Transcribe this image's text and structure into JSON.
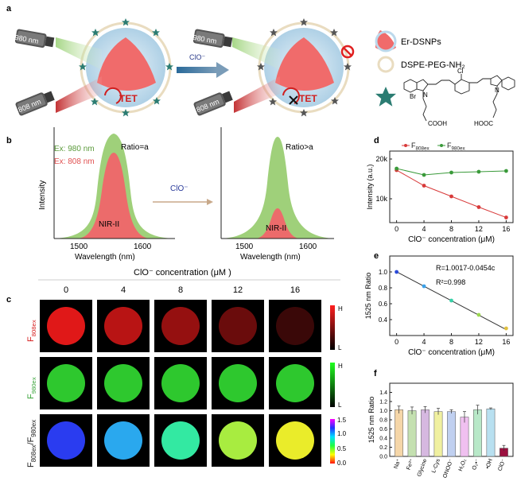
{
  "panel_labels": {
    "a": "a",
    "b": "b",
    "c": "c",
    "d": "d",
    "e": "e",
    "f": "f"
  },
  "panel_a": {
    "laser1": "980 nm",
    "laser2": "808 nm",
    "tet": "TET",
    "clo_arrow": "ClO⁻",
    "legend_np": "Er-DSNPs",
    "legend_lipid": "DSPE-PEG-NH₂",
    "dye_labels": {
      "cl": "Cl",
      "br": "Br",
      "n1": "N",
      "n2": "N",
      "cooh": "COOH",
      "hooc": "HOOC"
    },
    "colors": {
      "np": "#f06b6b",
      "shell": "#bcd9ec",
      "star": "#2b7c72",
      "lipid": "#e9dcc0"
    }
  },
  "panel_b": {
    "ex980": "Ex: 980 nm",
    "ex808": "Ex: 808 nm",
    "ratio_left": "Ratio=a",
    "ratio_right": "Ratio>a",
    "nir": "NIR-II",
    "clo": "ClO⁻",
    "ylabel": "Intensity",
    "xlabel": "Wavelength (nm)",
    "ticks": [
      "1500",
      "1600"
    ],
    "colors": {
      "green": "#9fd07a",
      "red": "#ec6b6b"
    }
  },
  "panel_c": {
    "title": "ClO⁻ concentration (μM )",
    "concentrations": [
      "0",
      "4",
      "8",
      "12",
      "16"
    ],
    "rows": [
      {
        "label_main": "F",
        "label_sub": "808ex",
        "color": "#d62020",
        "colors": [
          "#e01818",
          "#b81414",
          "#951010",
          "#6a0c0c",
          "#3a0808"
        ],
        "cbar_hi": "H",
        "cbar_lo": "L"
      },
      {
        "label_main": "F",
        "label_sub": "980ex",
        "color": "#3aa43a",
        "colors": [
          "#2ec82e",
          "#2ec82e",
          "#2ec82e",
          "#2ec82e",
          "#2ec82e"
        ],
        "cbar_hi": "H",
        "cbar_lo": "L"
      },
      {
        "label_main": "F",
        "label_sub": "808ex",
        "label_main2": "/F",
        "label_sub2": "980ex",
        "color": "#222",
        "colors": [
          "#2a3cf0",
          "#2aa8ee",
          "#33e9a2",
          "#a8ec40",
          "#eaec2a"
        ],
        "cbar_ticks": [
          "1.5",
          "1.0",
          "0.5",
          "0.0"
        ]
      }
    ]
  },
  "chart_data": [
    {
      "id": "d",
      "type": "line",
      "title": "",
      "xlabel": "ClO⁻ concentration (μM)",
      "ylabel": "Intensity (a.u.)",
      "x": [
        0,
        4,
        8,
        12,
        16
      ],
      "xlim": [
        -1,
        17
      ],
      "ylim": [
        4000,
        22000
      ],
      "xticks": [
        "0",
        "4",
        "8",
        "12",
        "16"
      ],
      "yticks": [
        "10k",
        "20k"
      ],
      "series": [
        {
          "name": "F808ex",
          "name_main": "F",
          "name_sub": "808ex",
          "color": "#d83a3a",
          "values": [
            17200,
            13300,
            10600,
            7900,
            5300
          ]
        },
        {
          "name": "F980ex",
          "name_main": "F",
          "name_sub": "980ex",
          "color": "#3a9a3a",
          "values": [
            17600,
            16000,
            16600,
            16800,
            17000
          ]
        }
      ]
    },
    {
      "id": "e",
      "type": "scatter",
      "xlabel": "ClO⁻ concentration (μM)",
      "ylabel": "1525 nm Ratio",
      "x": [
        0,
        4,
        8,
        12,
        16
      ],
      "values": [
        1.0,
        0.82,
        0.64,
        0.46,
        0.29
      ],
      "xlim": [
        -1,
        17
      ],
      "ylim": [
        0.2,
        1.2
      ],
      "xticks": [
        "0",
        "4",
        "8",
        "12",
        "16"
      ],
      "yticks": [
        "0.4",
        "0.6",
        "0.8",
        "1.0"
      ],
      "equation": "R=1.0017-0.0454c",
      "r2": "R²=0.998",
      "point_colors": [
        "#2b4ad8",
        "#3aa0e8",
        "#38d0a8",
        "#9cd850",
        "#e0c040"
      ],
      "fit_color": "#333"
    },
    {
      "id": "f",
      "type": "bar",
      "ylabel": "1525 nm Ratio",
      "categories": [
        "Na⁺",
        "Fe³⁺",
        "Glycine",
        "L-Cys",
        "ONOO⁻",
        "H₂O₂",
        "O₂•⁻",
        "•OH",
        "ClO⁻"
      ],
      "values": [
        1.02,
        1.0,
        1.02,
        0.98,
        0.98,
        0.86,
        1.02,
        1.04,
        0.18
      ],
      "errors": [
        0.08,
        0.08,
        0.07,
        0.07,
        0.04,
        0.12,
        0.1,
        0.02,
        0.06
      ],
      "colors": [
        "#f5d6a8",
        "#c4e0b0",
        "#d6b8e0",
        "#f0f0a0",
        "#c0d0f0",
        "#f0c0f0",
        "#b8e8c8",
        "#b8e0f0",
        "#9c1040"
      ],
      "ylim": [
        0,
        1.6
      ],
      "yticks": [
        "0.0",
        "0.2",
        "0.4",
        "0.6",
        "0.8",
        "1.0",
        "1.2",
        "1.4"
      ]
    }
  ]
}
